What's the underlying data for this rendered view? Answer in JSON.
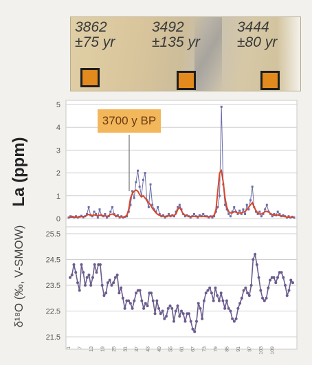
{
  "core_image": {
    "ages": [
      {
        "age": "3862",
        "error": "±75 yr"
      },
      {
        "age": "3492",
        "error": "±135 yr"
      },
      {
        "age": "3444",
        "error": "±80 yr"
      }
    ]
  },
  "colors": {
    "series_blue": "#6a6ea8",
    "series_red": "#d9472a",
    "series_purple": "#6b5c8e",
    "grid": "#cfcfcf",
    "bp_box": "#f3b75b",
    "marker": "#e38a1e"
  },
  "chart_data": [
    {
      "type": "line",
      "ylabel": "La (ppm)",
      "ylim": [
        0,
        5
      ],
      "yticks": [
        "0",
        "1",
        "2",
        "3",
        "4",
        "5"
      ],
      "annotation": "3700 y BP",
      "series": [
        {
          "values": [
            0.05,
            0.1,
            0.08,
            0.06,
            0.1,
            0.05,
            0.08,
            0.12,
            0.06,
            0.1,
            0.2,
            0.5,
            0.15,
            0.1,
            0.3,
            0.2,
            0.05,
            0.4,
            0.15,
            0.1,
            0.2,
            0.05,
            0.1,
            0.3,
            0.5,
            0.2,
            0.1,
            0.15,
            0.05,
            0.1,
            0.05,
            0.08,
            0.1,
            0.3,
            0.6,
            1.2,
            0.9,
            1.6,
            2.1,
            1.4,
            1.0,
            1.7,
            2.0,
            0.8,
            0.5,
            1.5,
            0.6,
            0.4,
            0.3,
            0.5,
            0.2,
            0.1,
            0.15,
            0.05,
            0.1,
            0.2,
            0.1,
            0.15,
            0.1,
            0.3,
            0.5,
            0.6,
            0.4,
            0.2,
            0.1,
            0.15,
            0.1,
            0.05,
            0.1,
            0.2,
            0.1,
            0.05,
            0.15,
            0.1,
            0.2,
            0.1,
            0.1,
            0.05,
            0.1,
            0.05,
            0.1,
            0.3,
            0.5,
            1.0,
            4.9,
            1.5,
            0.6,
            0.4,
            0.2,
            0.1,
            0.3,
            0.5,
            0.3,
            0.2,
            0.35,
            0.2,
            0.4,
            0.2,
            0.6,
            0.4,
            0.8,
            1.4,
            0.5,
            0.3,
            0.2,
            0.3,
            0.1,
            0.2,
            0.4,
            0.6,
            0.3,
            0.2,
            0.1,
            0.2,
            0.15,
            0.3,
            0.2,
            0.1,
            0.15,
            0.1,
            0.05,
            0.1,
            0.05,
            0.08,
            0.05
          ]
        },
        {
          "values": [
            0.05,
            0.06,
            0.07,
            0.06,
            0.06,
            0.07,
            0.08,
            0.08,
            0.09,
            0.1,
            0.15,
            0.18,
            0.15,
            0.14,
            0.16,
            0.15,
            0.12,
            0.15,
            0.14,
            0.12,
            0.12,
            0.1,
            0.12,
            0.18,
            0.2,
            0.16,
            0.13,
            0.1,
            0.08,
            0.07,
            0.07,
            0.08,
            0.15,
            0.4,
            0.9,
            1.1,
            1.2,
            1.25,
            1.2,
            1.05,
            0.95,
            1.0,
            0.9,
            0.8,
            0.7,
            0.6,
            0.45,
            0.35,
            0.25,
            0.18,
            0.14,
            0.12,
            0.1,
            0.1,
            0.1,
            0.12,
            0.13,
            0.12,
            0.14,
            0.2,
            0.4,
            0.5,
            0.35,
            0.2,
            0.15,
            0.12,
            0.1,
            0.09,
            0.1,
            0.1,
            0.1,
            0.1,
            0.1,
            0.1,
            0.1,
            0.1,
            0.08,
            0.08,
            0.08,
            0.1,
            0.15,
            0.4,
            1.2,
            2.0,
            2.1,
            1.6,
            0.9,
            0.5,
            0.3,
            0.25,
            0.25,
            0.3,
            0.28,
            0.25,
            0.25,
            0.25,
            0.28,
            0.3,
            0.4,
            0.5,
            0.6,
            0.7,
            0.5,
            0.35,
            0.25,
            0.2,
            0.2,
            0.25,
            0.3,
            0.32,
            0.28,
            0.22,
            0.18,
            0.15,
            0.15,
            0.16,
            0.14,
            0.12,
            0.1,
            0.08,
            0.07,
            0.06,
            0.06,
            0.06,
            0.05
          ]
        }
      ]
    },
    {
      "type": "line",
      "ylabel": "δ¹⁸O (‰, V-SMOW)",
      "ylim": [
        21.5,
        25.5
      ],
      "yticks": [
        "21.5",
        "22.5",
        "23.5",
        "24.5",
        "25.5"
      ],
      "series": [
        {
          "values": [
            23.8,
            23.9,
            24.3,
            24.0,
            23.6,
            23.3,
            24.3,
            24.0,
            23.5,
            23.8,
            23.9,
            23.5,
            23.8,
            24.3,
            24.0,
            24.3,
            24.3,
            23.5,
            23.1,
            23.2,
            23.6,
            23.7,
            23.5,
            23.6,
            23.8,
            23.9,
            23.2,
            23.4,
            23.0,
            22.6,
            22.9,
            22.9,
            22.8,
            22.6,
            22.9,
            23.2,
            23.3,
            23.3,
            22.9,
            22.6,
            22.8,
            22.7,
            23.2,
            23.2,
            22.9,
            22.4,
            22.9,
            22.6,
            22.4,
            22.5,
            22.2,
            22.3,
            22.6,
            22.7,
            22.6,
            22.1,
            22.5,
            22.7,
            22.3,
            22.5,
            22.4,
            22.1,
            22.4,
            22.4,
            22.1,
            21.8,
            21.7,
            22.1,
            22.8,
            22.6,
            22.2,
            22.9,
            23.2,
            23.3,
            23.4,
            23.2,
            22.9,
            23.4,
            23.1,
            22.9,
            23.2,
            22.9,
            22.6,
            22.9,
            22.6,
            22.5,
            22.2,
            22.1,
            22.2,
            22.6,
            22.8,
            23.0,
            23.3,
            23.4,
            23.2,
            23.1,
            23.5,
            24.5,
            24.7,
            24.3,
            23.8,
            23.3,
            23.0,
            22.9,
            23.0,
            23.4,
            23.7,
            23.8,
            23.8,
            23.6,
            23.8,
            24.0,
            24.0,
            23.8,
            23.5,
            23.1,
            23.3,
            23.7,
            23.6
          ]
        }
      ],
      "xtick_labels": [
        "1",
        "7",
        "13",
        "19",
        "25",
        "31",
        "37",
        "43",
        "49",
        "55",
        "61",
        "67",
        "73",
        "79",
        "85",
        "91",
        "97",
        "103",
        "109"
      ]
    }
  ]
}
